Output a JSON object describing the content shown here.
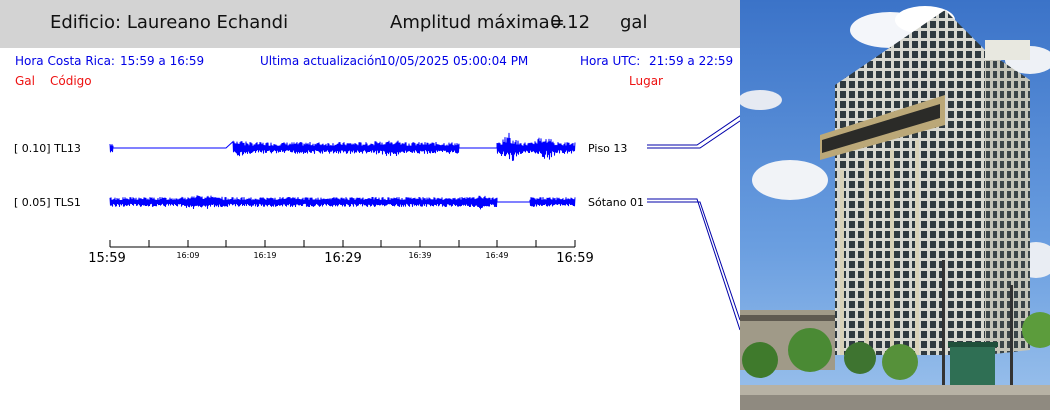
{
  "header": {
    "building": "Edificio: Laureano Echandi",
    "amplitude_label": "Amplitud máxima=",
    "amplitude_value": "0.12",
    "amplitude_unit": "gal"
  },
  "info": {
    "cr_time_label": "Hora Costa Rica:",
    "cr_time_value": "15:59 a 16:59",
    "update_label": "Ultima actualización:",
    "update_value": "10/05/2025 05:00:04 PM",
    "utc_label": "Hora UTC:",
    "utc_value": "21:59 a 22:59",
    "col_gal": "Gal",
    "col_code": "Código",
    "col_place": "Lugar"
  },
  "traces": [
    {
      "scale": "[   0.10] TL13",
      "place": "Piso 13",
      "color": "#0000ff"
    },
    {
      "scale": "[   0.05] TLS1",
      "place": "Sótano 01",
      "color": "#0000ff"
    }
  ],
  "time_axis": {
    "major_ticks": [
      "15:59",
      "16:29",
      "16:59"
    ],
    "minor_ticks": [
      "16:09",
      "16:19",
      "16:39",
      "16:49"
    ]
  },
  "colors": {
    "header_bg": "#d3d3d3",
    "info_blue": "#0000e6",
    "info_red": "#ee1111",
    "trace": "#0000ff",
    "connector": "#0000aa"
  }
}
